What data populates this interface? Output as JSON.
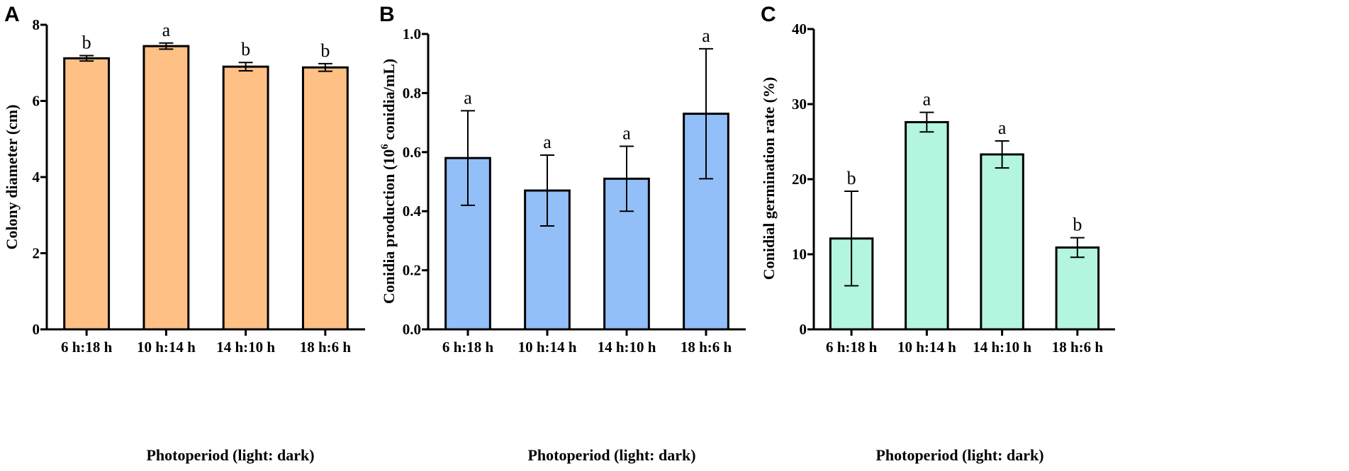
{
  "figure": {
    "panels": [
      {
        "letter": "A"
      },
      {
        "letter": "B"
      },
      {
        "letter": "C"
      }
    ]
  },
  "chart_data": [
    {
      "type": "bar",
      "panel": "A",
      "categories": [
        "6 h:18 h",
        "10 h:14 h",
        "14 h:10 h",
        "18 h:6 h"
      ],
      "values": [
        7.12,
        7.44,
        6.9,
        6.88
      ],
      "errors": [
        0.07,
        0.08,
        0.11,
        0.1
      ],
      "significance": [
        "b",
        "a",
        "b",
        "b"
      ],
      "xlabel": "Photoperiod (light: dark)",
      "ylabel": "Colony diameter (cm)",
      "ylim": [
        0,
        8
      ],
      "yticks": [
        "0",
        "2",
        "4",
        "6",
        "8"
      ],
      "bar_color": "#FFC085"
    },
    {
      "type": "bar",
      "panel": "B",
      "categories": [
        "6 h:18 h",
        "10 h:14 h",
        "14 h:10 h",
        "18 h:6 h"
      ],
      "values": [
        0.58,
        0.47,
        0.51,
        0.73
      ],
      "errors": [
        0.16,
        0.12,
        0.11,
        0.22
      ],
      "significance": [
        "a",
        "a",
        "a",
        "a"
      ],
      "xlabel": "Photoperiod (light: dark)",
      "ylabel": "Conidia production (10",
      "ylabel_sup": "6",
      "ylabel_suffix": " conidia/mL)",
      "ylim": [
        0,
        1.0
      ],
      "yticks": [
        "0.0",
        "0.2",
        "0.4",
        "0.6",
        "0.8",
        "1.0"
      ],
      "bar_color": "#92BFF8"
    },
    {
      "type": "bar",
      "panel": "C",
      "categories": [
        "6 h:18 h",
        "10 h:14 h",
        "14 h:10 h",
        "18 h:6 h"
      ],
      "values": [
        12.1,
        27.6,
        23.3,
        10.9
      ],
      "errors": [
        6.3,
        1.3,
        1.8,
        1.3
      ],
      "significance": [
        "b",
        "a",
        "a",
        "b"
      ],
      "xlabel": "Photoperiod (light: dark)",
      "ylabel": "Conidial germination rate (%)",
      "ylim": [
        0,
        40
      ],
      "yticks": [
        "0",
        "10",
        "20",
        "30",
        "40"
      ],
      "bar_color": "#B3F5DE"
    }
  ]
}
